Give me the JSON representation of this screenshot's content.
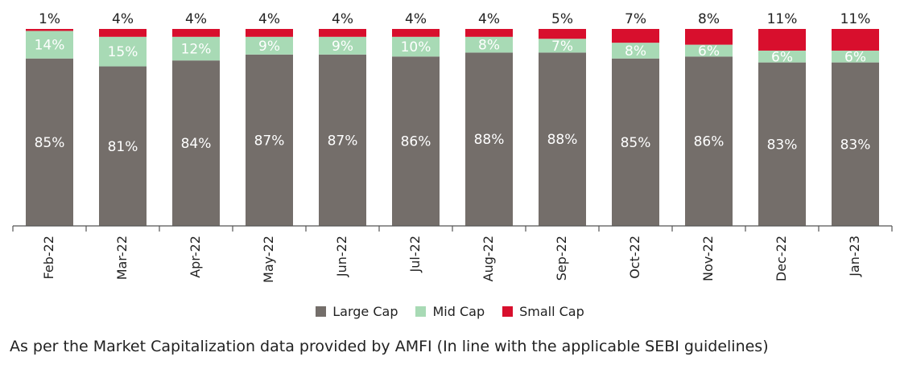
{
  "chart_data": {
    "type": "bar",
    "stacked": true,
    "percent": true,
    "categories": [
      "Feb-22",
      "Mar-22",
      "Apr-22",
      "May-22",
      "Jun-22",
      "Jul-22",
      "Aug-22",
      "Sep-22",
      "Oct-22",
      "Nov-22",
      "Dec-22",
      "Jan-23"
    ],
    "series": [
      {
        "name": "Large Cap",
        "color": "#746e6a",
        "values": [
          85,
          81,
          84,
          87,
          87,
          86,
          88,
          88,
          85,
          86,
          83,
          83
        ]
      },
      {
        "name": "Mid Cap",
        "color": "#a8dab5",
        "values": [
          14,
          15,
          12,
          9,
          9,
          10,
          8,
          7,
          8,
          6,
          6,
          6
        ]
      },
      {
        "name": "Small Cap",
        "color": "#d80f2d",
        "values": [
          1,
          4,
          4,
          4,
          4,
          4,
          4,
          5,
          7,
          8,
          11,
          11
        ]
      }
    ],
    "ylim": [
      0,
      100
    ],
    "grid": false,
    "legend_position": "bottom"
  },
  "footnote": "As per the Market Capitalization data provided by AMFI (In line with the applicable SEBI guidelines)"
}
